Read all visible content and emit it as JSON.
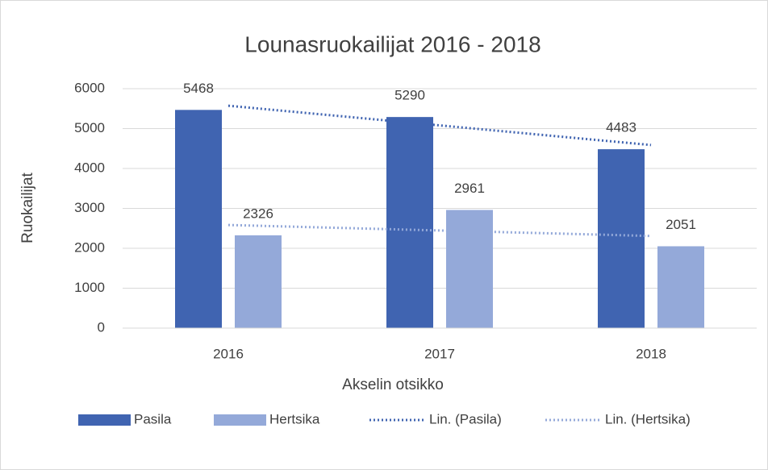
{
  "chart_data": {
    "type": "bar",
    "title": "Lounasruokailijat 2016 - 2018",
    "x_label": "Akselin otsikko",
    "y_label": "Ruokailijat",
    "categories": [
      "2016",
      "2017",
      "2018"
    ],
    "series": [
      {
        "name": "Pasila",
        "color": "#4064b1",
        "values": [
          5468,
          5290,
          4483
        ]
      },
      {
        "name": "Hertsika",
        "color": "#94a9d9",
        "values": [
          2326,
          2961,
          2051
        ]
      }
    ],
    "trendlines": [
      {
        "type": "line",
        "name": "Lin. (Pasila)",
        "color": "#4064b1",
        "values": [
          5573,
          5080,
          4588
        ]
      },
      {
        "type": "line",
        "name": "Lin. (Hertsika)",
        "color": "#94a9d9",
        "values": [
          2584,
          2446,
          2309
        ]
      }
    ],
    "ylim": [
      0,
      6000
    ],
    "yticks": [
      0,
      1000,
      2000,
      3000,
      4000,
      5000,
      6000
    ],
    "grid": true,
    "legend": "bottom"
  }
}
